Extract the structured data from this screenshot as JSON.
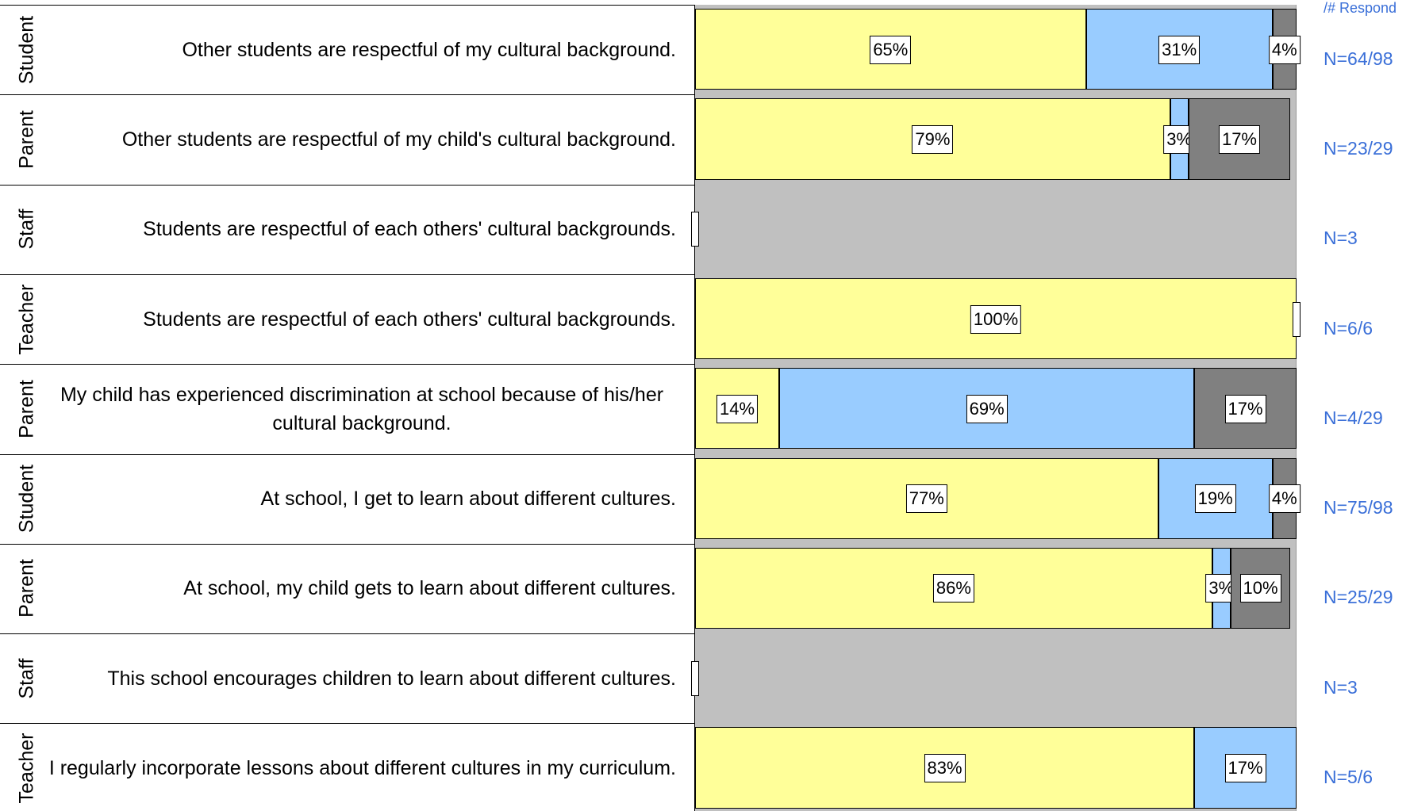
{
  "chart_data": {
    "type": "bar",
    "orientation": "horizontal",
    "stacked": true,
    "header": "/# Respond",
    "groups": [
      "Student",
      "Parent",
      "Staff",
      "Teacher",
      "Parent",
      "Student",
      "Parent",
      "Staff",
      "Teacher"
    ],
    "categories": [
      "Other students are respectful of my cultural background.",
      "Other students are respectful of my child's cultural background.",
      "Students are respectful of each others' cultural backgrounds.",
      "Students are respectful of each others' cultural backgrounds.",
      "My child has experienced discrimination at school because of his/her cultural background.",
      "At school, I get to learn about different cultures.",
      "At school, my child gets to learn about different cultures.",
      "This school encourages children to learn about different cultures.",
      "I regularly incorporate lessons about different cultures in my curriculum."
    ],
    "respondents": [
      "N=64/98",
      "N=23/29",
      "N=3",
      "N=6/6",
      "N=4/29",
      "N=75/98",
      "N=25/29",
      "N=3",
      "N=5/6"
    ],
    "xlim": [
      0,
      100
    ],
    "series": [
      {
        "color": "#ffff99",
        "values": [
          65,
          79,
          null,
          100,
          14,
          77,
          86,
          null,
          83
        ],
        "value_labels": [
          "65%",
          "79%",
          null,
          "100%",
          "14%",
          "77%",
          "86%",
          null,
          "83%"
        ]
      },
      {
        "color": "#99ccff",
        "values": [
          31,
          3,
          null,
          0,
          69,
          19,
          3,
          null,
          17
        ],
        "value_labels": [
          "31%",
          "3%",
          null,
          null,
          "69%",
          "19%",
          "3%",
          null,
          "17%"
        ]
      },
      {
        "color": "#808080",
        "values": [
          4,
          17,
          null,
          0,
          17,
          4,
          10,
          null,
          0
        ],
        "value_labels": [
          "4%",
          "17%",
          null,
          null,
          "17%",
          "4%",
          "10%",
          null,
          null
        ]
      }
    ]
  }
}
